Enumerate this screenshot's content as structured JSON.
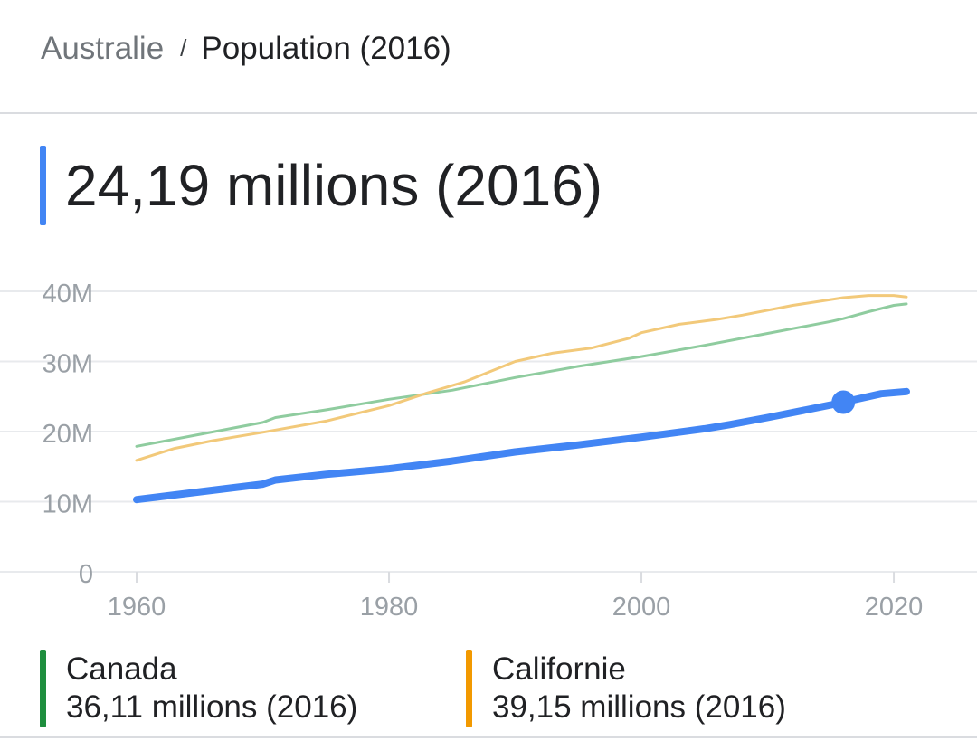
{
  "breadcrumb": {
    "parent": "Australie",
    "separator": "/",
    "current": "Population (2016)"
  },
  "headline": {
    "value": "24,19 millions (2016)",
    "color": "#4285f4"
  },
  "legend": [
    {
      "name": "Canada",
      "value": "36,11 millions (2016)",
      "color": "#1e8e3e"
    },
    {
      "name": "Californie",
      "value": "39,15 millions (2016)",
      "color": "#f29900"
    }
  ],
  "chart_data": {
    "type": "line",
    "xlabel": "",
    "ylabel": "",
    "xlim": [
      1960,
      2021
    ],
    "ylim": [
      0,
      40
    ],
    "x_ticks": [
      1960,
      1980,
      2000,
      2020
    ],
    "y_ticks": [
      {
        "value": 0,
        "label": "0"
      },
      {
        "value": 10,
        "label": "10M"
      },
      {
        "value": 20,
        "label": "20M"
      },
      {
        "value": 30,
        "label": "30M"
      },
      {
        "value": 40,
        "label": "40M"
      }
    ],
    "grid": true,
    "highlight": {
      "series": "Australie",
      "x": 2016,
      "y": 24.19
    },
    "series": [
      {
        "name": "Canada",
        "color": "#8fcc9f",
        "x": [
          1960,
          1965,
          1970,
          1971,
          1975,
          1980,
          1985,
          1990,
          1995,
          2000,
          2005,
          2010,
          2015,
          2016,
          2018,
          2020,
          2021
        ],
        "values": [
          17.9,
          19.6,
          21.3,
          22.0,
          23.1,
          24.6,
          25.9,
          27.7,
          29.3,
          30.7,
          32.3,
          34.0,
          35.7,
          36.1,
          37.1,
          38.0,
          38.2
        ]
      },
      {
        "name": "Californie",
        "color": "#f2c97a",
        "x": [
          1960,
          1963,
          1966,
          1970,
          1975,
          1980,
          1983,
          1986,
          1990,
          1993,
          1996,
          1999,
          2000,
          2003,
          2006,
          2008,
          2012,
          2016,
          2018,
          2020,
          2021
        ],
        "values": [
          15.9,
          17.6,
          18.7,
          19.9,
          21.5,
          23.7,
          25.5,
          27.1,
          30.0,
          31.2,
          31.9,
          33.3,
          34.1,
          35.3,
          36.0,
          36.6,
          38.0,
          39.1,
          39.4,
          39.4,
          39.2
        ]
      },
      {
        "name": "Australie",
        "color": "#4285f4",
        "x": [
          1960,
          1965,
          1970,
          1971,
          1975,
          1980,
          1985,
          1990,
          1995,
          2000,
          2005,
          2007,
          2010,
          2015,
          2016,
          2019,
          2021
        ],
        "values": [
          10.3,
          11.4,
          12.5,
          13.1,
          13.9,
          14.7,
          15.8,
          17.1,
          18.1,
          19.2,
          20.4,
          21.0,
          22.0,
          23.8,
          24.2,
          25.4,
          25.7
        ]
      }
    ]
  }
}
